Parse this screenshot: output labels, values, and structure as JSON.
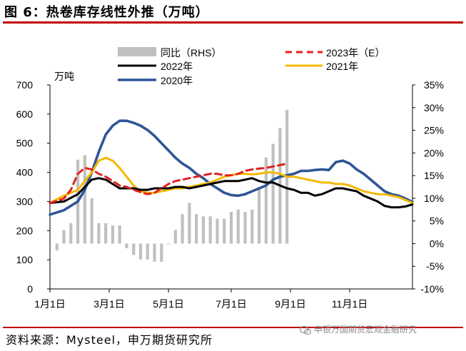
{
  "header": {
    "title": "图 6：热卷库存线性外推（万吨）"
  },
  "footer": {
    "source": "资料来源：Mysteel，申万期货研究所",
    "watermark": "申银万国期货宏观金融研究"
  },
  "chart_data": {
    "type": "line",
    "title": "图 6：热卷库存线性外推（万吨）",
    "ylabel": "万吨",
    "ylim": [
      0,
      700
    ],
    "y2lim": [
      -10,
      35
    ],
    "yticks": [
      "0",
      "100",
      "200",
      "300",
      "400",
      "500",
      "600",
      "700"
    ],
    "y2ticks": [
      "-10%",
      "-5%",
      "0%",
      "5%",
      "10%",
      "15%",
      "20%",
      "25%",
      "30%",
      "35%"
    ],
    "xticks": [
      "1月1日",
      "3月1日",
      "5月1日",
      "7月1日",
      "9月1日",
      "11月1日"
    ],
    "xtick_weeks": [
      0,
      8.5,
      17,
      26,
      34.5,
      43
    ],
    "week_range": [
      0,
      52
    ],
    "colors": {
      "y2023e": "#e02020",
      "y2022": "#000000",
      "y2021": "#f5b800",
      "y2020": "#2f5597",
      "yoy": "#c0c0c0"
    },
    "legend": [
      "同比（RHS）",
      "2023年（E）",
      "2022年",
      "2021年",
      "2020年"
    ],
    "series": [
      {
        "name": "2020年",
        "key": "y2020",
        "x": [
          0,
          2,
          4,
          5,
          6,
          7,
          8,
          9,
          10,
          11,
          12,
          13,
          14,
          15,
          16,
          17,
          18,
          19,
          20,
          21,
          22,
          23,
          24,
          25,
          26,
          27,
          28,
          29,
          30,
          31,
          32,
          33,
          34,
          35,
          36,
          37,
          38,
          39,
          40,
          41,
          42,
          43,
          44,
          45,
          46,
          47,
          48,
          49,
          50,
          51,
          52
        ],
        "y": [
          255,
          270,
          300,
          340,
          400,
          470,
          530,
          560,
          577,
          577,
          570,
          560,
          545,
          525,
          500,
          475,
          450,
          430,
          415,
          395,
          380,
          360,
          345,
          330,
          322,
          320,
          325,
          335,
          345,
          355,
          375,
          385,
          390,
          395,
          405,
          405,
          408,
          410,
          408,
          435,
          440,
          430,
          410,
          395,
          375,
          355,
          335,
          325,
          320,
          310,
          298
        ]
      },
      {
        "name": "2021年",
        "key": "y2021",
        "x": [
          0,
          2,
          4,
          5,
          6,
          7,
          8,
          9,
          10,
          11,
          12,
          13,
          14,
          15,
          16,
          17,
          18,
          19,
          20,
          21,
          22,
          23,
          24,
          25,
          26,
          27,
          28,
          29,
          30,
          31,
          32,
          33,
          34,
          35,
          36,
          37,
          38,
          39,
          40,
          41,
          42,
          43,
          44,
          45,
          46,
          47,
          48,
          49,
          50,
          51,
          52
        ],
        "y": [
          295,
          320,
          340,
          370,
          400,
          440,
          450,
          440,
          415,
          385,
          355,
          335,
          330,
          330,
          335,
          340,
          345,
          345,
          350,
          355,
          360,
          365,
          375,
          385,
          390,
          395,
          395,
          393,
          395,
          400,
          400,
          395,
          385,
          385,
          380,
          375,
          370,
          365,
          365,
          360,
          360,
          355,
          345,
          335,
          330,
          325,
          325,
          320,
          315,
          305,
          295
        ]
      },
      {
        "name": "2022年",
        "key": "y2022",
        "x": [
          0,
          2,
          4,
          5,
          6,
          7,
          8,
          9,
          10,
          11,
          12,
          13,
          14,
          15,
          16,
          17,
          18,
          19,
          20,
          21,
          22,
          23,
          24,
          25,
          26,
          27,
          28,
          29,
          30,
          31,
          32,
          33,
          34,
          35,
          36,
          37,
          38,
          39,
          40,
          41,
          42,
          43,
          44,
          45,
          46,
          47,
          48,
          49,
          50,
          51,
          52
        ],
        "y": [
          295,
          300,
          325,
          350,
          375,
          380,
          375,
          360,
          345,
          345,
          345,
          340,
          340,
          345,
          345,
          345,
          350,
          350,
          345,
          350,
          355,
          360,
          365,
          370,
          370,
          370,
          375,
          380,
          370,
          365,
          365,
          355,
          345,
          340,
          330,
          330,
          320,
          325,
          335,
          345,
          345,
          340,
          335,
          320,
          310,
          300,
          285,
          280,
          280,
          283,
          290
        ]
      },
      {
        "name": "2023年（E）",
        "key": "y2023e",
        "x": [
          0,
          2,
          3,
          4,
          5,
          6,
          7,
          8,
          9,
          10,
          11,
          12,
          13,
          14,
          15,
          16,
          17,
          18,
          19,
          20,
          21,
          22,
          23,
          24,
          25,
          26,
          27,
          28,
          29,
          30,
          31,
          32,
          33,
          34
        ],
        "y": [
          295,
          310,
          340,
          395,
          415,
          410,
          395,
          385,
          370,
          355,
          350,
          340,
          332,
          325,
          330,
          345,
          360,
          370,
          375,
          380,
          385,
          390,
          395,
          395,
          390,
          390,
          395,
          405,
          410,
          413,
          415,
          420,
          425,
          430
        ]
      }
    ],
    "bars": {
      "name": "同比（RHS）",
      "key": "yoy",
      "x": [
        1,
        2,
        3,
        4,
        5,
        6,
        7,
        8,
        9,
        10,
        11,
        12,
        13,
        14,
        15,
        16,
        17,
        18,
        19,
        20,
        21,
        22,
        23,
        24,
        25,
        26,
        27,
        28,
        29,
        30,
        31,
        32,
        33,
        34
      ],
      "y": [
        -1.5,
        3,
        4.5,
        18.5,
        19.5,
        10,
        4.5,
        4.5,
        4,
        4,
        -1,
        -2.5,
        -3.5,
        -3.5,
        -4,
        -4,
        0,
        3,
        6.5,
        9,
        6.5,
        6,
        6,
        5.5,
        5.5,
        7,
        7.5,
        7,
        7.5,
        12.5,
        19,
        22,
        25.5,
        29.5
      ]
    }
  }
}
